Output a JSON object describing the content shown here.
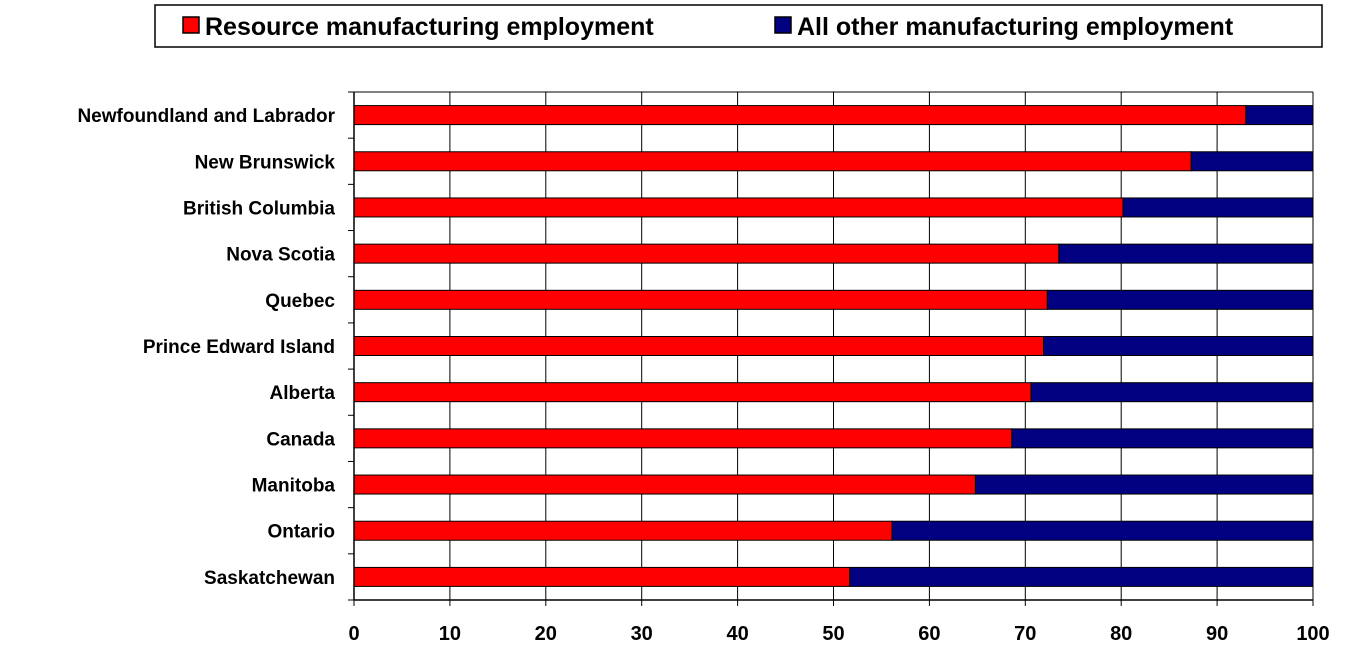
{
  "chart_data": {
    "type": "bar",
    "orientation": "horizontal",
    "stacked": true,
    "categories": [
      "Newfoundland and Labrador",
      "New Brunswick",
      "British Columbia",
      "Nova Scotia",
      "Quebec",
      "Prince Edward Island",
      "Alberta",
      "Canada",
      "Manitoba",
      "Ontario",
      "Saskatchewan"
    ],
    "series": [
      {
        "name": "Resource manufacturing employment",
        "color": "#ff0000",
        "values": [
          93,
          87.3,
          80.2,
          73.5,
          72.3,
          71.9,
          70.6,
          68.6,
          64.8,
          56.1,
          51.7
        ]
      },
      {
        "name": "All other manufacturing employment",
        "color": "#000080",
        "values": [
          7,
          12.7,
          19.8,
          26.5,
          27.7,
          28.1,
          29.4,
          31.4,
          35.2,
          43.9,
          48.3
        ]
      }
    ],
    "xlim": [
      0,
      100
    ],
    "xticks": [
      0,
      10,
      20,
      30,
      40,
      50,
      60,
      70,
      80,
      90,
      100
    ],
    "grid": "vertical",
    "legend_position": "top"
  }
}
